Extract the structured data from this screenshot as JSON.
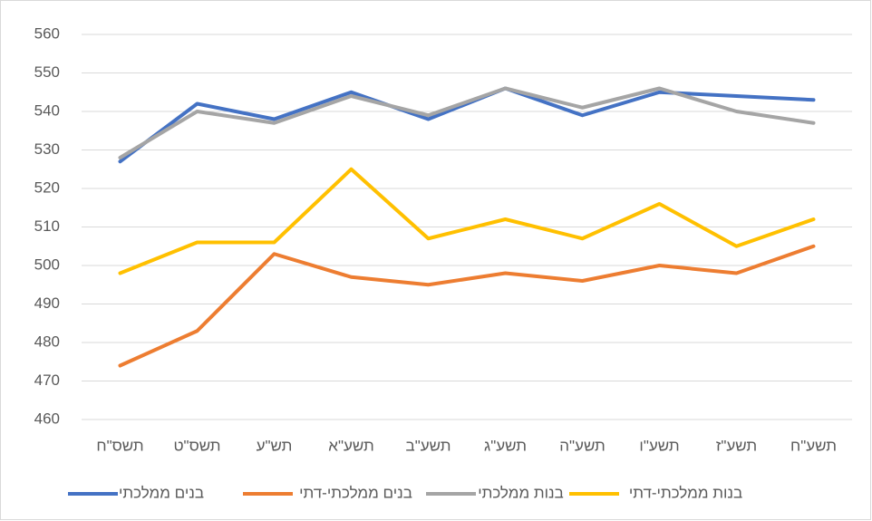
{
  "chart_data": {
    "type": "line",
    "categories": [
      "תשס\"ח",
      "תשס\"ט",
      "תש\"ע",
      "תשע\"א",
      "תשע\"ב",
      "תשע\"ג",
      "תשע\"ה",
      "תשע\"ו",
      "תשע\"ז",
      "תשע\"ח"
    ],
    "series": [
      {
        "name": "בנים ממלכתי",
        "color": "#4472c4",
        "values": [
          527,
          542,
          538,
          545,
          538,
          546,
          539,
          545,
          544,
          543
        ]
      },
      {
        "name": "בנים ממלכתי-דתי",
        "color": "#ed7d31",
        "values": [
          474,
          483,
          503,
          497,
          495,
          498,
          496,
          500,
          498,
          505
        ]
      },
      {
        "name": "בנות ממלכתי",
        "color": "#a5a5a5",
        "values": [
          528,
          540,
          537,
          544,
          539,
          546,
          541,
          546,
          540,
          537
        ]
      },
      {
        "name": "בנות ממלכתי-דתי",
        "color": "#ffc000",
        "values": [
          498,
          506,
          506,
          525,
          507,
          512,
          507,
          516,
          505,
          512
        ]
      }
    ],
    "ylim": [
      460,
      560
    ],
    "yticks": [
      460,
      470,
      480,
      490,
      500,
      510,
      520,
      530,
      540,
      550,
      560
    ],
    "grid": true,
    "legend": "bottom"
  }
}
